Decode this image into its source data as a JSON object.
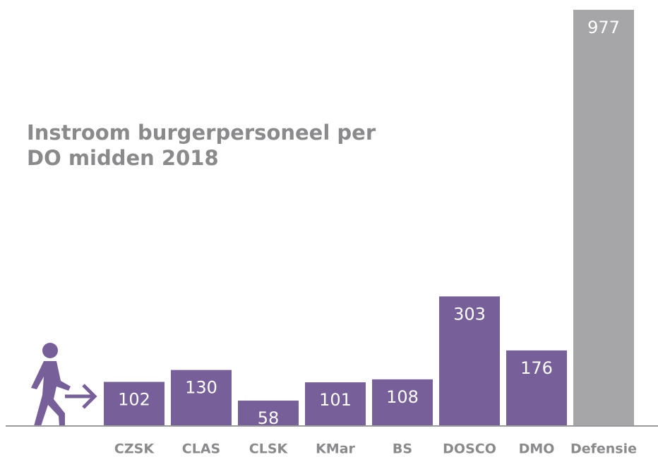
{
  "chart_data": {
    "type": "bar",
    "title": [
      "Instroom burgerpersoneel per",
      "DO midden 2018"
    ],
    "categories": [
      "CZSK",
      "CLAS",
      "CLSK",
      "KMar",
      "BS",
      "DOSCO",
      "DMO",
      "Defensie"
    ],
    "values": [
      102,
      130,
      58,
      101,
      108,
      303,
      176,
      977
    ],
    "colors": [
      "#77609a",
      "#77609a",
      "#77609a",
      "#77609a",
      "#77609a",
      "#77609a",
      "#77609a",
      "#a6a6a8"
    ],
    "ylim": [
      0,
      1000
    ]
  }
}
